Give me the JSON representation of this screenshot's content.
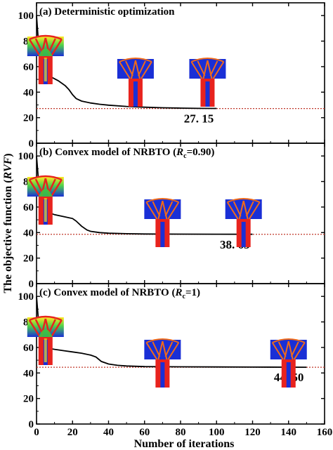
{
  "chart_data": {
    "type": "line",
    "xlabel": "Number of iterations",
    "ylabel": "The objective function (RVF)",
    "ylabel_parts": [
      "The objective function (",
      "RVF",
      ")"
    ],
    "xlim": [
      0,
      160
    ],
    "ylim": [
      0,
      110
    ],
    "xticks": [
      0,
      20,
      40,
      60,
      80,
      100,
      120,
      140,
      160
    ],
    "yticks": [
      0,
      20,
      40,
      60,
      80,
      100
    ],
    "colors": {
      "line": "#000000",
      "reference": "#c0392b",
      "topo_red": "#e8231e",
      "topo_blue": "#1a2fd6",
      "topo_green": "#3ccc3c",
      "topo_yellow": "#f0e020"
    },
    "panels": [
      {
        "title": "(a) Deterministic optimization",
        "final_value": 27.15,
        "final_label": "27. 15",
        "x": [
          0,
          1,
          2,
          3,
          5,
          8,
          10,
          12,
          14,
          16,
          18,
          20,
          22,
          25,
          30,
          35,
          40,
          50,
          60,
          70,
          80,
          90,
          100
        ],
        "y": [
          100,
          80,
          62,
          56,
          54,
          52,
          50.5,
          49,
          47,
          45,
          42,
          38,
          35,
          33,
          31.5,
          30.5,
          29.8,
          28.8,
          28.2,
          27.8,
          27.5,
          27.3,
          27.2
        ],
        "snapshots": [
          {
            "at_iteration": 5,
            "style": "early"
          },
          {
            "at_iteration": 55,
            "style": "mid"
          },
          {
            "at_iteration": 95,
            "style": "final"
          }
        ]
      },
      {
        "title_parts": [
          "(b) Convex model of NRBTO (",
          "R",
          "c",
          "=0.90)"
        ],
        "final_value": 38.63,
        "final_label": "38. 63",
        "x": [
          0,
          1,
          2,
          3,
          5,
          8,
          10,
          15,
          20,
          22,
          25,
          28,
          30,
          35,
          40,
          50,
          60,
          80,
          100,
          120
        ],
        "y": [
          100,
          82,
          68,
          62,
          58,
          55,
          54,
          52.5,
          51,
          49,
          45,
          42,
          41,
          40,
          39.5,
          39.1,
          38.9,
          38.8,
          38.7,
          38.65
        ],
        "snapshots": [
          {
            "at_iteration": 5,
            "style": "early"
          },
          {
            "at_iteration": 70,
            "style": "mid"
          },
          {
            "at_iteration": 115,
            "style": "final"
          }
        ]
      },
      {
        "title_parts": [
          "(c) Convex model of NRBTO (",
          "R",
          "c",
          "=1)"
        ],
        "final_value": 44.5,
        "final_label": "44. 50",
        "x": [
          0,
          1,
          2,
          3,
          5,
          8,
          10,
          15,
          20,
          25,
          30,
          33,
          36,
          40,
          45,
          50,
          60,
          80,
          100,
          120,
          150
        ],
        "y": [
          100,
          82,
          70,
          64,
          61,
          59,
          58.5,
          57.5,
          56.5,
          55.5,
          54,
          52.5,
          49,
          47,
          46,
          45.5,
          45,
          44.8,
          44.7,
          44.6,
          44.5
        ],
        "snapshots": [
          {
            "at_iteration": 5,
            "style": "early"
          },
          {
            "at_iteration": 70,
            "style": "mid"
          },
          {
            "at_iteration": 140,
            "style": "final"
          }
        ]
      }
    ]
  }
}
